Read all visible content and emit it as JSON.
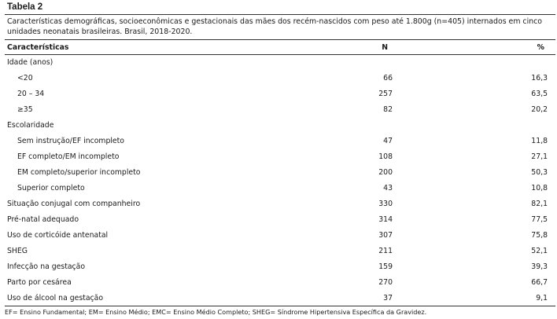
{
  "table": {
    "label": "Tabela 2",
    "caption": "Características demográficas, socioeconômicas e gestacionais das mães dos recém-nascidos com peso até 1.800g (n=405) internados em cinco unidades neonatais brasileiras. Brasil, 2018-2020.",
    "headers": [
      "Características",
      "N",
      "%"
    ],
    "rows": [
      {
        "label": "Idade (anos)",
        "n": "",
        "pct": "",
        "indent": false
      },
      {
        "label": "<20",
        "n": "66",
        "pct": "16,3",
        "indent": true
      },
      {
        "label": "20 – 34",
        "n": "257",
        "pct": "63,5",
        "indent": true
      },
      {
        "label": "≥35",
        "n": "82",
        "pct": "20,2",
        "indent": true
      },
      {
        "label": "Escolaridade",
        "n": "",
        "pct": "",
        "indent": false
      },
      {
        "label": "Sem instrução/EF incompleto",
        "n": "47",
        "pct": "11,8",
        "indent": true
      },
      {
        "label": "EF completo/EM incompleto",
        "n": "108",
        "pct": "27,1",
        "indent": true
      },
      {
        "label": "EM completo/superior incompleto",
        "n": "200",
        "pct": "50,3",
        "indent": true
      },
      {
        "label": "Superior completo",
        "n": "43",
        "pct": "10,8",
        "indent": true
      },
      {
        "label": "Situação conjugal com companheiro",
        "n": "330",
        "pct": "82,1",
        "indent": false
      },
      {
        "label": "Pré-natal adequado",
        "n": "314",
        "pct": "77,5",
        "indent": false
      },
      {
        "label": "Uso de corticóide antenatal",
        "n": "307",
        "pct": "75,8",
        "indent": false
      },
      {
        "label": "SHEG",
        "n": "211",
        "pct": "52,1",
        "indent": false
      },
      {
        "label": "Infecção na gestação",
        "n": "159",
        "pct": "39,3",
        "indent": false
      },
      {
        "label": "Parto por cesárea",
        "n": "270",
        "pct": "66,7",
        "indent": false
      },
      {
        "label": "Uso de álcool na gestação",
        "n": "37",
        "pct": "9,1",
        "indent": false
      }
    ],
    "footnote": "EF= Ensino Fundamental; EM= Ensino Médio; EMC= Ensino Médio Completo; SHEG= Síndrome Hipertensiva Específica da Gravidez."
  }
}
